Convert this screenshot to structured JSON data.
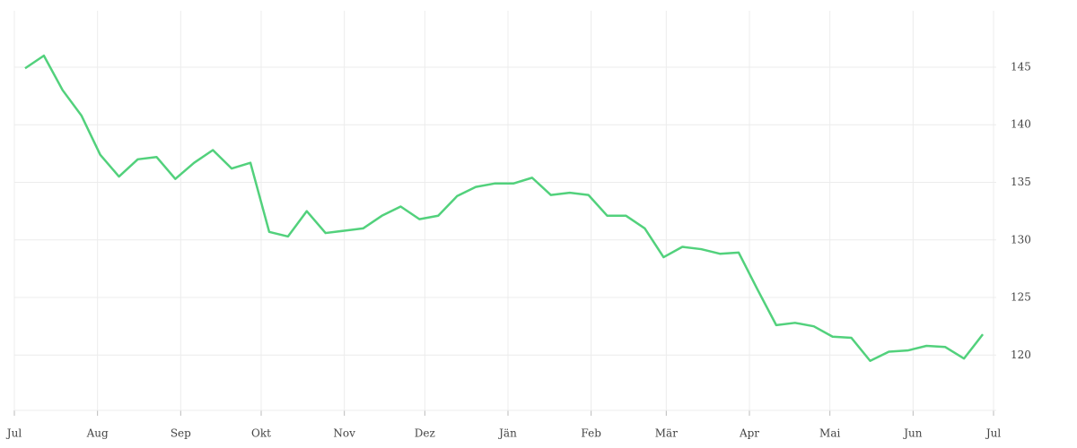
{
  "chart_data": {
    "type": "line",
    "x": [
      4,
      11,
      18,
      25,
      32,
      39,
      46,
      53,
      60,
      67,
      74,
      81,
      88,
      95,
      102,
      109,
      116,
      123,
      130,
      137,
      144,
      151,
      158,
      165,
      172,
      179,
      186,
      193,
      200,
      207,
      214,
      221,
      228,
      235,
      242,
      249,
      256,
      263,
      270,
      277,
      284,
      291,
      298,
      305,
      312,
      319,
      326,
      333,
      340,
      347,
      354,
      361
    ],
    "series": [
      {
        "color": "#52d17c",
        "values": [
          144.9,
          146.0,
          143.0,
          140.8,
          137.4,
          135.5,
          137.0,
          137.2,
          135.3,
          136.7,
          137.8,
          136.2,
          136.7,
          130.7,
          130.3,
          132.5,
          130.6,
          130.8,
          131.0,
          132.1,
          132.9,
          131.8,
          132.1,
          133.8,
          134.6,
          134.9,
          134.9,
          135.4,
          133.9,
          134.1,
          133.9,
          132.1,
          132.1,
          131.0,
          128.5,
          129.4,
          129.2,
          128.8,
          128.9,
          125.7,
          122.6,
          122.8,
          122.5,
          121.6,
          121.5,
          119.5,
          120.3,
          120.4,
          120.8,
          120.7,
          119.7,
          121.8
        ]
      }
    ],
    "xlim": [
      0,
      366
    ],
    "xticks": [
      {
        "value": 0,
        "label": "Jul"
      },
      {
        "value": 31,
        "label": "Aug"
      },
      {
        "value": 62,
        "label": "Sep"
      },
      {
        "value": 92,
        "label": "Okt"
      },
      {
        "value": 123,
        "label": "Nov"
      },
      {
        "value": 153,
        "label": "Dez"
      },
      {
        "value": 184,
        "label": "Jän"
      },
      {
        "value": 215,
        "label": "Feb"
      },
      {
        "value": 243,
        "label": "Mär"
      },
      {
        "value": 274,
        "label": "Apr"
      },
      {
        "value": 304,
        "label": "Mai"
      },
      {
        "value": 335,
        "label": "Jun"
      },
      {
        "value": 365,
        "label": "Jul"
      }
    ],
    "ylim": [
      115.2,
      149.9
    ],
    "yticks": [
      120,
      125,
      130,
      135,
      140,
      145
    ],
    "grid": true
  }
}
